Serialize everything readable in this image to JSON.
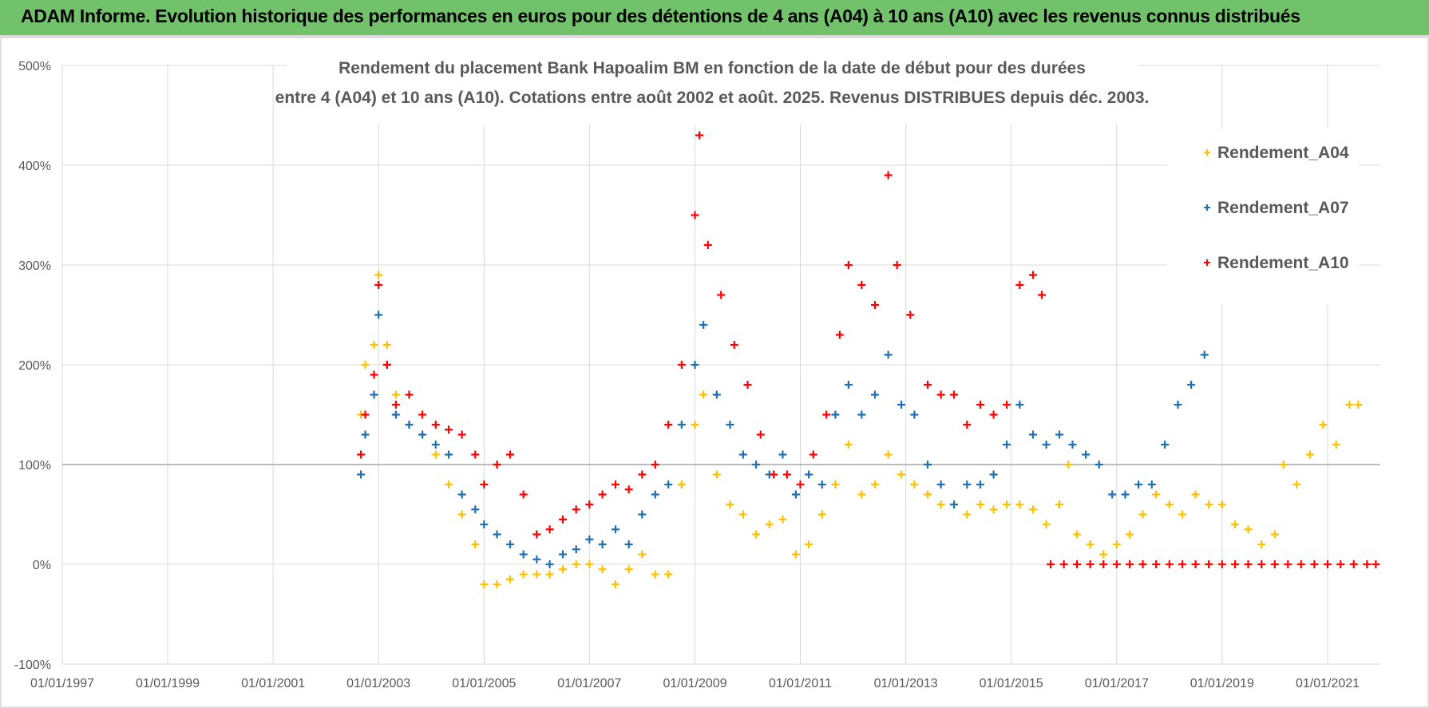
{
  "header": {
    "title": "ADAM Informe. Evolution historique des performances en euros pour des détentions de 4 ans (A04) à 10 ans (A10) avec les revenus connus distribués"
  },
  "chart_data": {
    "type": "scatter",
    "title": [
      "Rendement du placement Bank Hapoalim BM en fonction de la date de début pour des durées",
      "entre 4 (A04) et 10 ans (A10). Cotations entre août 2002 et août. 2025. Revenus DISTRIBUES depuis déc. 2003."
    ],
    "xlim": [
      "1997-01-01",
      "2022-01-01"
    ],
    "xticks": [
      {
        "value": "1997-01-01",
        "label": "01/01/1997"
      },
      {
        "value": "1999-01-01",
        "label": "01/01/1999"
      },
      {
        "value": "2001-01-01",
        "label": "01/01/2001"
      },
      {
        "value": "2003-01-01",
        "label": "01/01/2003"
      },
      {
        "value": "2005-01-01",
        "label": "01/01/2005"
      },
      {
        "value": "2007-01-01",
        "label": "01/01/2007"
      },
      {
        "value": "2009-01-01",
        "label": "01/01/2009"
      },
      {
        "value": "2011-01-01",
        "label": "01/01/2011"
      },
      {
        "value": "2013-01-01",
        "label": "01/01/2013"
      },
      {
        "value": "2015-01-01",
        "label": "01/01/2015"
      },
      {
        "value": "2017-01-01",
        "label": "01/01/2017"
      },
      {
        "value": "2019-01-01",
        "label": "01/01/2019"
      },
      {
        "value": "2021-01-01",
        "label": "01/01/2021"
      }
    ],
    "ylim": [
      -100,
      500
    ],
    "yticks": [
      {
        "value": -100,
        "label": "-100%"
      },
      {
        "value": 0,
        "label": "0%"
      },
      {
        "value": 100,
        "label": "100%"
      },
      {
        "value": 200,
        "label": "200%"
      },
      {
        "value": 300,
        "label": "300%"
      },
      {
        "value": 400,
        "label": "400%"
      },
      {
        "value": 500,
        "label": "500%"
      }
    ],
    "grid": true,
    "legend": "upper right",
    "series": [
      {
        "name": "Rendement_A04",
        "color": "#ffc000",
        "x": [
          "2002-09-01",
          "2002-10-01",
          "2002-12-01",
          "2003-01-01",
          "2003-03-01",
          "2003-05-01",
          "2003-08-01",
          "2003-11-01",
          "2004-02-01",
          "2004-05-01",
          "2004-08-01",
          "2004-11-01",
          "2005-01-01",
          "2005-04-01",
          "2005-07-01",
          "2005-10-01",
          "2006-01-01",
          "2006-04-01",
          "2006-07-01",
          "2006-10-01",
          "2007-01-01",
          "2007-04-01",
          "2007-07-01",
          "2007-10-01",
          "2008-01-01",
          "2008-04-01",
          "2008-07-01",
          "2008-10-01",
          "2009-01-01",
          "2009-03-01",
          "2009-06-01",
          "2009-09-01",
          "2009-12-01",
          "2010-03-01",
          "2010-06-01",
          "2010-09-01",
          "2010-12-01",
          "2011-03-01",
          "2011-06-01",
          "2011-09-01",
          "2011-12-01",
          "2012-03-01",
          "2012-06-01",
          "2012-09-01",
          "2012-12-01",
          "2013-03-01",
          "2013-06-01",
          "2013-09-01",
          "2013-12-01",
          "2014-03-01",
          "2014-06-01",
          "2014-09-01",
          "2014-12-01",
          "2015-03-01",
          "2015-06-01",
          "2015-09-01",
          "2015-12-01",
          "2016-02-01",
          "2016-04-01",
          "2016-07-01",
          "2016-10-01",
          "2017-01-01",
          "2017-04-01",
          "2017-07-01",
          "2017-10-01",
          "2018-01-01",
          "2018-04-01",
          "2018-07-01",
          "2018-10-01",
          "2019-01-01",
          "2019-04-01",
          "2019-07-01",
          "2019-10-01",
          "2020-01-01",
          "2020-03-01",
          "2020-06-01",
          "2020-09-01",
          "2020-12-01",
          "2021-03-01",
          "2021-06-01",
          "2021-08-01"
        ],
        "values": [
          150,
          200,
          220,
          290,
          220,
          170,
          140,
          130,
          110,
          80,
          50,
          20,
          -20,
          -20,
          -15,
          -10,
          -10,
          -10,
          -5,
          0,
          0,
          -5,
          -20,
          -5,
          10,
          -10,
          -10,
          80,
          140,
          170,
          90,
          60,
          50,
          30,
          40,
          45,
          10,
          20,
          50,
          80,
          120,
          70,
          80,
          110,
          90,
          80,
          70,
          60,
          60,
          50,
          60,
          55,
          60,
          60,
          55,
          40,
          60,
          100,
          30,
          20,
          10,
          20,
          30,
          50,
          70,
          60,
          50,
          70,
          60,
          60,
          40,
          35,
          20,
          30,
          100,
          80,
          110,
          140,
          120,
          160,
          160
        ]
      },
      {
        "name": "Rendement_A07",
        "color": "#1f6fb5",
        "x": [
          "2002-09-01",
          "2002-10-01",
          "2002-12-01",
          "2003-01-01",
          "2003-03-01",
          "2003-05-01",
          "2003-08-01",
          "2003-11-01",
          "2004-02-01",
          "2004-05-01",
          "2004-08-01",
          "2004-11-01",
          "2005-01-01",
          "2005-04-01",
          "2005-07-01",
          "2005-10-01",
          "2006-01-01",
          "2006-04-01",
          "2006-07-01",
          "2006-10-01",
          "2007-01-01",
          "2007-04-01",
          "2007-07-01",
          "2007-10-01",
          "2008-01-01",
          "2008-04-01",
          "2008-07-01",
          "2008-10-01",
          "2009-01-01",
          "2009-03-01",
          "2009-06-01",
          "2009-09-01",
          "2009-12-01",
          "2010-03-01",
          "2010-06-01",
          "2010-09-01",
          "2010-12-01",
          "2011-03-01",
          "2011-06-01",
          "2011-09-01",
          "2011-12-01",
          "2012-03-01",
          "2012-06-01",
          "2012-09-01",
          "2012-12-01",
          "2013-03-01",
          "2013-06-01",
          "2013-09-01",
          "2013-12-01",
          "2014-03-01",
          "2014-06-01",
          "2014-09-01",
          "2014-12-01",
          "2015-03-01",
          "2015-06-01",
          "2015-09-01",
          "2015-12-01",
          "2016-03-01",
          "2016-06-01",
          "2016-09-01",
          "2016-12-01",
          "2017-03-01",
          "2017-06-01",
          "2017-09-01",
          "2017-12-01",
          "2018-03-01",
          "2018-06-01",
          "2018-09-01"
        ],
        "values": [
          90,
          130,
          170,
          250,
          200,
          150,
          140,
          130,
          120,
          110,
          70,
          55,
          40,
          30,
          20,
          10,
          5,
          0,
          10,
          15,
          25,
          20,
          35,
          20,
          50,
          70,
          80,
          140,
          200,
          240,
          170,
          140,
          110,
          100,
          90,
          110,
          70,
          90,
          80,
          150,
          180,
          150,
          170,
          210,
          160,
          150,
          100,
          80,
          60,
          80,
          80,
          90,
          120,
          160,
          130,
          120,
          130,
          120,
          110,
          100,
          70,
          70,
          80,
          80,
          120,
          160,
          180,
          210
        ]
      },
      {
        "name": "Rendement_A10",
        "color": "#ff0000",
        "x": [
          "2002-09-01",
          "2002-10-01",
          "2002-12-01",
          "2003-01-01",
          "2003-03-01",
          "2003-05-01",
          "2003-08-01",
          "2003-11-01",
          "2004-02-01",
          "2004-05-01",
          "2004-08-01",
          "2004-11-01",
          "2005-01-01",
          "2005-04-01",
          "2005-07-01",
          "2005-10-01",
          "2006-01-01",
          "2006-04-01",
          "2006-07-01",
          "2006-10-01",
          "2007-01-01",
          "2007-04-01",
          "2007-07-01",
          "2007-10-01",
          "2008-01-01",
          "2008-04-01",
          "2008-07-01",
          "2008-10-01",
          "2009-01-01",
          "2009-02-01",
          "2009-04-01",
          "2009-07-01",
          "2009-10-01",
          "2010-01-01",
          "2010-04-01",
          "2010-07-01",
          "2010-10-01",
          "2011-01-01",
          "2011-04-01",
          "2011-07-01",
          "2011-10-01",
          "2011-12-01",
          "2012-03-01",
          "2012-06-01",
          "2012-09-01",
          "2012-11-01",
          "2013-02-01",
          "2013-06-01",
          "2013-09-01",
          "2013-12-01",
          "2014-03-01",
          "2014-06-01",
          "2014-09-01",
          "2014-12-01",
          "2015-03-01",
          "2015-06-01",
          "2015-08-01",
          "2015-10-01",
          "2016-01-01",
          "2016-04-01",
          "2016-07-01",
          "2016-10-01",
          "2017-01-01",
          "2017-04-01",
          "2017-07-01",
          "2017-10-01",
          "2018-01-01",
          "2018-04-01",
          "2018-07-01",
          "2018-10-01",
          "2019-01-01",
          "2019-04-01",
          "2019-07-01",
          "2019-10-01",
          "2020-01-01",
          "2020-04-01",
          "2020-07-01",
          "2020-10-01",
          "2021-01-01",
          "2021-04-01",
          "2021-07-01",
          "2021-10-01",
          "2021-12-01"
        ],
        "values": [
          110,
          150,
          190,
          280,
          200,
          160,
          170,
          150,
          140,
          135,
          130,
          110,
          80,
          100,
          110,
          70,
          30,
          35,
          45,
          55,
          60,
          70,
          80,
          75,
          90,
          100,
          140,
          200,
          350,
          430,
          320,
          270,
          220,
          180,
          130,
          90,
          90,
          80,
          110,
          150,
          230,
          300,
          280,
          260,
          390,
          300,
          250,
          180,
          170,
          170,
          140,
          160,
          150,
          160,
          280,
          290,
          270,
          0,
          0,
          0,
          0,
          0,
          0,
          0,
          0,
          0,
          0,
          0,
          0,
          0,
          0,
          0,
          0,
          0,
          0,
          0,
          0,
          0,
          0,
          0,
          0,
          0,
          0
        ]
      }
    ]
  }
}
